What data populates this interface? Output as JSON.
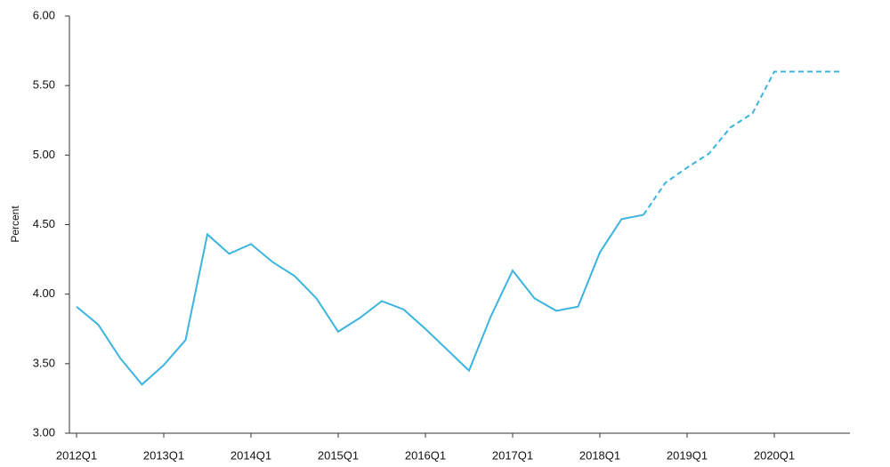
{
  "chart_data": {
    "type": "line",
    "y_label": "Percent",
    "categories": [
      "2012Q1",
      null,
      null,
      null,
      "2013Q1",
      null,
      null,
      null,
      "2014Q1",
      null,
      null,
      null,
      "2015Q1",
      null,
      null,
      null,
      "2016Q1",
      null,
      null,
      null,
      "2017Q1",
      null,
      null,
      null,
      "2018Q1",
      null,
      null,
      null,
      "2019Q1",
      null,
      null,
      null,
      "2020Q1",
      null,
      null,
      null
    ],
    "series": [
      {
        "color": "#3cb4e0",
        "style": "solid",
        "values": [
          3.91,
          3.78,
          3.54,
          3.35,
          3.49,
          3.67,
          4.43,
          4.29,
          4.36,
          4.23,
          4.13,
          3.97,
          3.73,
          3.83,
          3.95,
          3.89,
          3.75,
          3.6,
          3.45,
          3.84,
          4.17,
          3.97,
          3.88,
          3.91,
          4.3,
          4.54,
          4.57,
          null,
          null,
          null,
          null,
          null,
          null,
          null,
          null,
          null
        ]
      },
      {
        "color": "#3cb4e0",
        "style": "dashed",
        "values": [
          null,
          null,
          null,
          null,
          null,
          null,
          null,
          null,
          null,
          null,
          null,
          null,
          null,
          null,
          null,
          null,
          null,
          null,
          null,
          null,
          null,
          null,
          null,
          null,
          null,
          null,
          4.57,
          4.8,
          4.91,
          5.01,
          5.2,
          5.3,
          5.6,
          5.6,
          5.6,
          5.6
        ]
      }
    ],
    "ylim": [
      3.0,
      6.0
    ],
    "yticks": [
      {
        "value": 3.0,
        "label": "3.00"
      },
      {
        "value": 3.5,
        "label": "3.50"
      },
      {
        "value": 4.0,
        "label": "4.00"
      },
      {
        "value": 4.5,
        "label": "4.50"
      },
      {
        "value": 5.0,
        "label": "5.00"
      },
      {
        "value": 5.5,
        "label": "5.50"
      },
      {
        "value": 6.0,
        "label": "6.00"
      }
    ]
  }
}
